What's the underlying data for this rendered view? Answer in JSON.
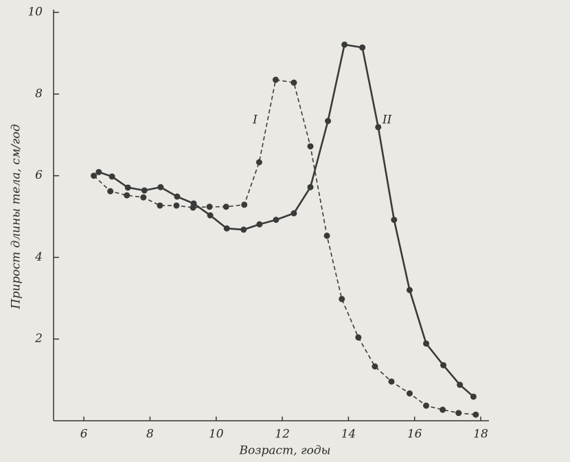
{
  "chart_data": {
    "type": "line",
    "xlabel": "Возраст, годы",
    "ylabel": "Прирост длины тела, см/год",
    "xlim": [
      5,
      18
    ],
    "xticks": [
      6,
      8,
      10,
      12,
      14,
      16,
      18
    ],
    "ylim": [
      0,
      10
    ],
    "yticks": [
      2,
      4,
      6,
      8,
      10
    ],
    "series": [
      {
        "name": "I",
        "color": "#3a3a3a",
        "dash": true,
        "x": [
          6.3,
          6.8,
          7.3,
          7.8,
          8.3,
          8.8,
          9.3,
          9.8,
          10.3,
          10.85,
          11.3,
          11.8,
          12.35,
          12.85,
          13.35,
          13.8,
          14.3,
          14.8,
          15.3,
          15.85,
          16.35,
          16.85,
          17.33,
          17.85
        ],
        "values": [
          6.0,
          5.62,
          5.52,
          5.47,
          5.27,
          5.27,
          5.22,
          5.24,
          5.24,
          5.29,
          6.33,
          8.35,
          8.28,
          6.72,
          4.53,
          2.98,
          2.04,
          1.33,
          0.96,
          0.67,
          0.37,
          0.27,
          0.19,
          0.15
        ]
      },
      {
        "name": "II",
        "color": "#3a3a3a",
        "dash": false,
        "x": [
          6.45,
          6.85,
          7.33,
          7.83,
          8.32,
          8.82,
          9.32,
          9.82,
          10.32,
          10.83,
          11.31,
          11.81,
          12.35,
          12.85,
          13.38,
          13.88,
          14.42,
          14.9,
          15.38,
          15.85,
          16.35,
          16.87,
          17.37,
          17.78
        ],
        "values": [
          6.09,
          5.98,
          5.71,
          5.64,
          5.72,
          5.49,
          5.32,
          5.03,
          4.71,
          4.68,
          4.81,
          4.92,
          5.08,
          5.72,
          7.34,
          9.21,
          9.14,
          7.19,
          4.92,
          3.2,
          1.89,
          1.36,
          0.88,
          0.59
        ]
      }
    ]
  }
}
